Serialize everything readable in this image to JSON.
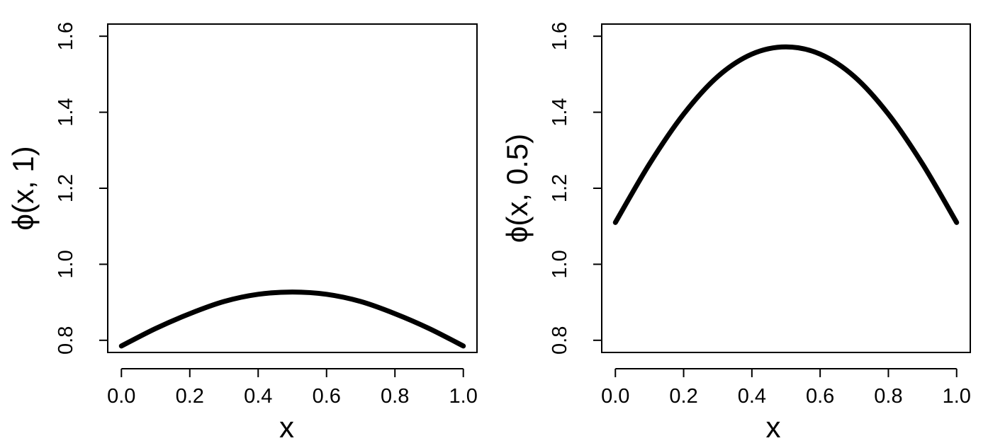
{
  "chart_data": [
    {
      "type": "line",
      "xlabel": "x",
      "ylabel": "ϕ(x, 1)",
      "xlim": [
        0.0,
        1.0
      ],
      "ylim": [
        0.8,
        1.6
      ],
      "x_ticks": [
        "0.0",
        "0.2",
        "0.4",
        "0.6",
        "0.8",
        "1.0"
      ],
      "y_ticks": [
        "0.8",
        "1.0",
        "1.2",
        "1.4",
        "1.6"
      ],
      "grid": false,
      "series": [
        {
          "x": [
            0.0,
            0.1,
            0.2,
            0.3,
            0.4,
            0.5,
            0.6,
            0.7,
            0.8,
            0.9,
            1.0
          ],
          "y": [
            0.785,
            0.831,
            0.87,
            0.902,
            0.921,
            0.927,
            0.921,
            0.902,
            0.87,
            0.831,
            0.785
          ]
        }
      ]
    },
    {
      "type": "line",
      "xlabel": "x",
      "ylabel": "ϕ(x, 0.5)",
      "xlim": [
        0.0,
        1.0
      ],
      "ylim": [
        0.8,
        1.6
      ],
      "x_ticks": [
        "0.0",
        "0.2",
        "0.4",
        "0.6",
        "0.8",
        "1.0"
      ],
      "y_ticks": [
        "0.8",
        "1.0",
        "1.2",
        "1.4",
        "1.6"
      ],
      "grid": false,
      "series": [
        {
          "x": [
            0.0,
            0.1,
            0.2,
            0.3,
            0.4,
            0.5,
            0.6,
            0.7,
            0.8,
            0.9,
            1.0
          ],
          "y": [
            1.11,
            1.264,
            1.395,
            1.494,
            1.553,
            1.572,
            1.553,
            1.494,
            1.395,
            1.264,
            1.11
          ]
        }
      ]
    }
  ]
}
